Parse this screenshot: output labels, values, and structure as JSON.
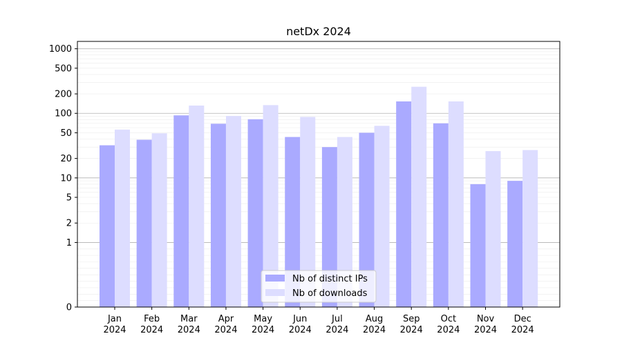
{
  "chart_data": {
    "type": "bar",
    "title": "netDx 2024",
    "xlabel": "",
    "ylabel": "",
    "y_scale": "symlog",
    "ylim": [
      0,
      1300
    ],
    "y_ticks": [
      0,
      1,
      2,
      5,
      10,
      20,
      50,
      100,
      200,
      500,
      1000
    ],
    "y_tick_labels": [
      "0",
      "1",
      "2",
      "5",
      "10",
      "20",
      "50",
      "100",
      "200",
      "500",
      "1000"
    ],
    "categories": [
      "Jan\n2024",
      "Feb\n2024",
      "Mar\n2024",
      "Apr\n2024",
      "May\n2024",
      "Jun\n2024",
      "Jul\n2024",
      "Aug\n2024",
      "Sep\n2024",
      "Oct\n2024",
      "Nov\n2024",
      "Dec\n2024"
    ],
    "series": [
      {
        "name": "Nb of distinct IPs",
        "color": "#aaaaff",
        "values": [
          32,
          39,
          93,
          69,
          81,
          43,
          30,
          50,
          153,
          70,
          8,
          9
        ]
      },
      {
        "name": "Nb of downloads",
        "color": "#ddddff",
        "values": [
          56,
          49,
          132,
          91,
          134,
          88,
          43,
          64,
          258,
          153,
          26,
          27
        ]
      }
    ],
    "grid": true,
    "legend_position": "bottom-center"
  }
}
